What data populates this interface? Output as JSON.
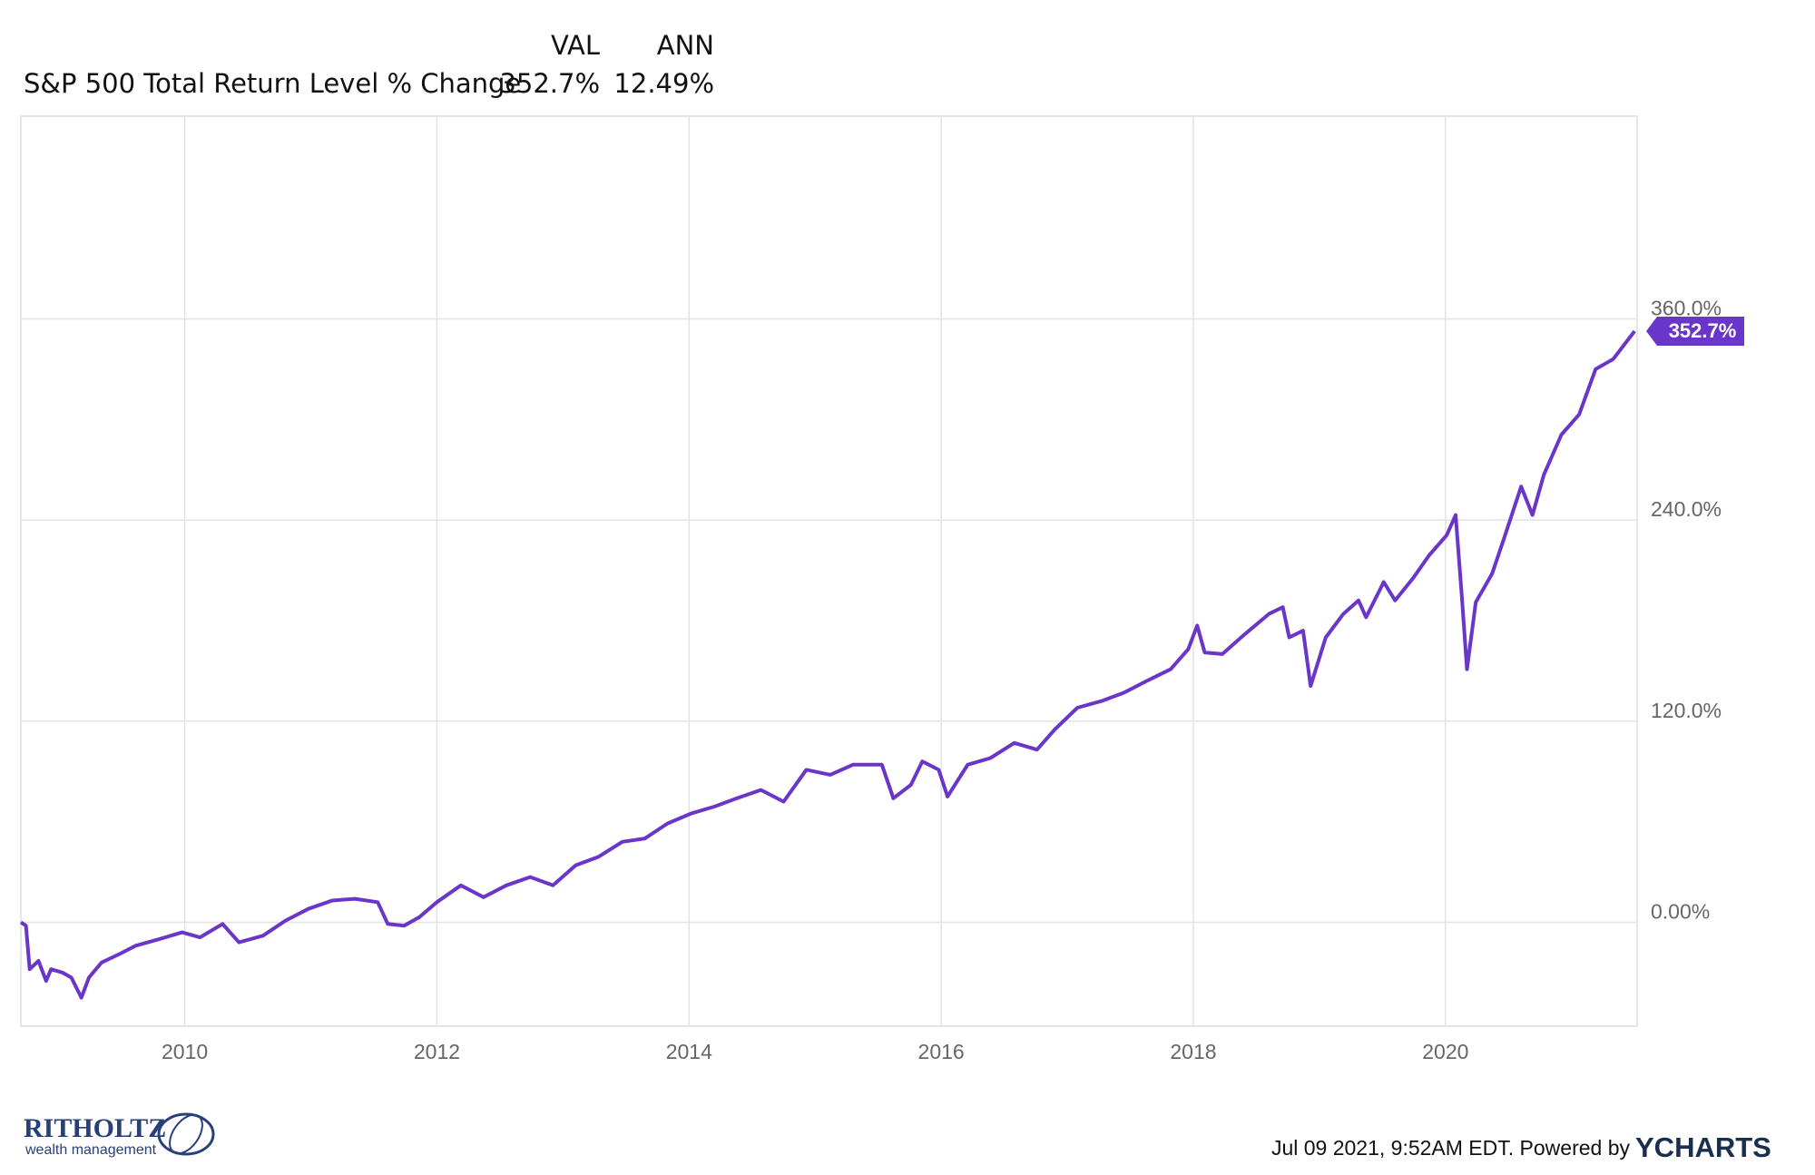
{
  "chart_data": {
    "type": "line",
    "legend_columns": [
      "VAL",
      "ANN"
    ],
    "series": [
      {
        "name": "S&P 500 Total Return Level % Change",
        "color": "#6a35c9",
        "val": {
          "value": 352.7,
          "label": "352.7%"
        },
        "ann": {
          "value": 12.49,
          "label": "12.49%"
        },
        "values": [
          0,
          -2,
          -28,
          -23,
          -35,
          -28,
          -30,
          -33,
          -45,
          -33,
          -24,
          -19,
          -14,
          -10,
          -6,
          -9,
          -1,
          -12,
          -8,
          1,
          8,
          13,
          14,
          12,
          -1,
          -2,
          3,
          12,
          22,
          15,
          22,
          27,
          22,
          34,
          39,
          48,
          50,
          59,
          65,
          69,
          74,
          79,
          72,
          91,
          88,
          94,
          94,
          74,
          82,
          96,
          91,
          75,
          94,
          98,
          107,
          103,
          115,
          128,
          132,
          137,
          144,
          151,
          163,
          177,
          161,
          160,
          172,
          184,
          188,
          170,
          174,
          141,
          170,
          184,
          192,
          182,
          203,
          192,
          205,
          219,
          231,
          243,
          194,
          151,
          191,
          208,
          228,
          260,
          243,
          267,
          291,
          303,
          330,
          336,
          352.7
        ]
      }
    ],
    "x": [
      2008.7,
      2008.74,
      2008.77,
      2008.84,
      2008.9,
      2008.94,
      2009.03,
      2009.1,
      2009.18,
      2009.24,
      2009.34,
      2009.48,
      2009.61,
      2009.8,
      2009.98,
      2010.12,
      2010.3,
      2010.43,
      2010.62,
      2010.8,
      2010.98,
      2011.17,
      2011.35,
      2011.53,
      2011.61,
      2011.74,
      2011.86,
      2012.0,
      2012.19,
      2012.37,
      2012.55,
      2012.74,
      2012.92,
      2013.1,
      2013.28,
      2013.47,
      2013.65,
      2013.83,
      2014.02,
      2014.2,
      2014.38,
      2014.57,
      2014.75,
      2014.93,
      2015.12,
      2015.3,
      2015.53,
      2015.62,
      2015.76,
      2015.85,
      2015.98,
      2016.05,
      2016.21,
      2016.39,
      2016.58,
      2016.76,
      2016.9,
      2017.08,
      2017.27,
      2017.45,
      2017.63,
      2017.82,
      2017.96,
      2018.03,
      2018.09,
      2018.23,
      2018.41,
      2018.6,
      2018.71,
      2018.76,
      2018.87,
      2018.93,
      2019.05,
      2019.19,
      2019.31,
      2019.37,
      2019.51,
      2019.6,
      2019.74,
      2019.87,
      2020.01,
      2020.08,
      2020.13,
      2020.17,
      2020.24,
      2020.37,
      2020.46,
      2020.6,
      2020.69,
      2020.78,
      2020.92,
      2021.06,
      2021.19,
      2021.33,
      2021.5
    ],
    "xlim": [
      2008.7,
      2021.52
    ],
    "xticks": [
      2010,
      2012,
      2014,
      2016,
      2018,
      2020
    ],
    "ylim": [
      -62,
      481
    ],
    "yticks": [
      {
        "value": 0,
        "label": "0.00%"
      },
      {
        "value": 120,
        "label": "120.0%"
      },
      {
        "value": 240,
        "label": "240.0%"
      },
      {
        "value": 360,
        "label": "360.0%"
      }
    ],
    "grid": true
  },
  "logo": {
    "name": "RITHOLTZ",
    "tagline": "wealth management"
  },
  "footer": {
    "timestamp": "Jul 09 2021, 9:52AM EDT. Powered by",
    "brand": "YCHARTS"
  }
}
